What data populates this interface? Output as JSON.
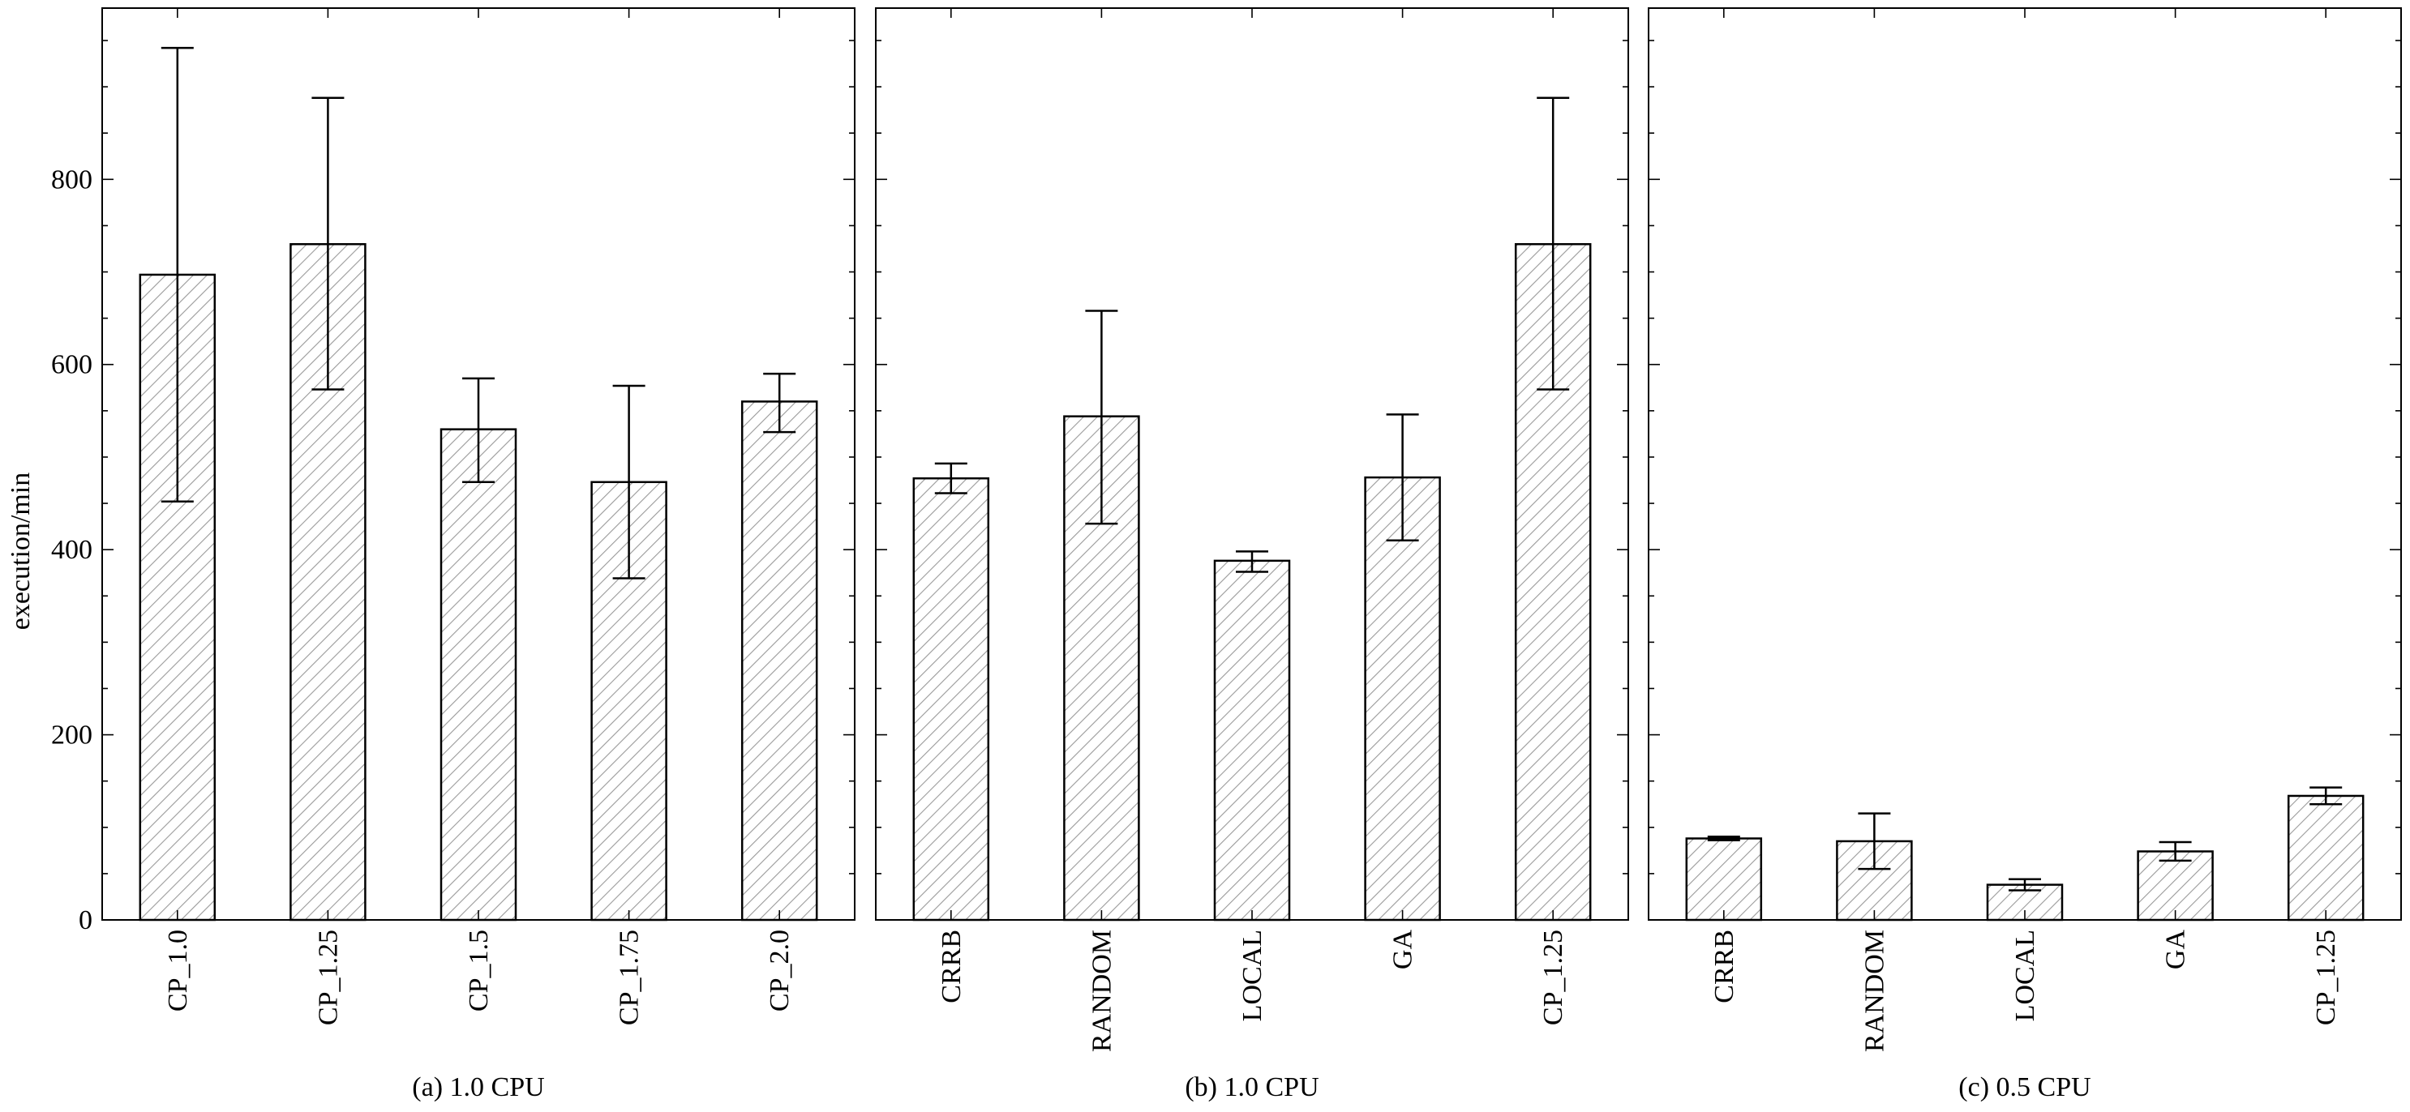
{
  "figure": {
    "ylabel": "execution/min"
  },
  "chart_data": [
    {
      "type": "bar",
      "caption": "(a) 1.0 CPU",
      "categories": [
        "CP_1.0",
        "CP_1.25",
        "CP_1.5",
        "CP_1.75",
        "CP_2.0"
      ],
      "values": [
        697,
        730,
        530,
        473,
        560
      ],
      "error_low": [
        452,
        573,
        473,
        369,
        527
      ],
      "error_high": [
        942,
        888,
        585,
        577,
        590
      ],
      "ylabel": "execution/min",
      "ylim": [
        0,
        985
      ],
      "yticks": [
        0,
        200,
        400,
        600,
        800
      ],
      "grid": false
    },
    {
      "type": "bar",
      "caption": "(b) 1.0 CPU",
      "categories": [
        "CRRB",
        "RANDOM",
        "LOCAL",
        "GA",
        "CP_1.25"
      ],
      "values": [
        477,
        544,
        388,
        478,
        730
      ],
      "error_low": [
        461,
        428,
        376,
        410,
        573
      ],
      "error_high": [
        493,
        658,
        398,
        546,
        888
      ],
      "ylim": [
        0,
        985
      ],
      "grid": false
    },
    {
      "type": "bar",
      "caption": "(c) 0.5 CPU",
      "categories": [
        "CRRB",
        "RANDOM",
        "LOCAL",
        "GA",
        "CP_1.25"
      ],
      "values": [
        88,
        85,
        38,
        74,
        134
      ],
      "error_low": [
        86,
        55,
        32,
        64,
        125
      ],
      "error_high": [
        90,
        115,
        44,
        84,
        143
      ],
      "ylim": [
        0,
        985
      ],
      "grid": false
    }
  ]
}
